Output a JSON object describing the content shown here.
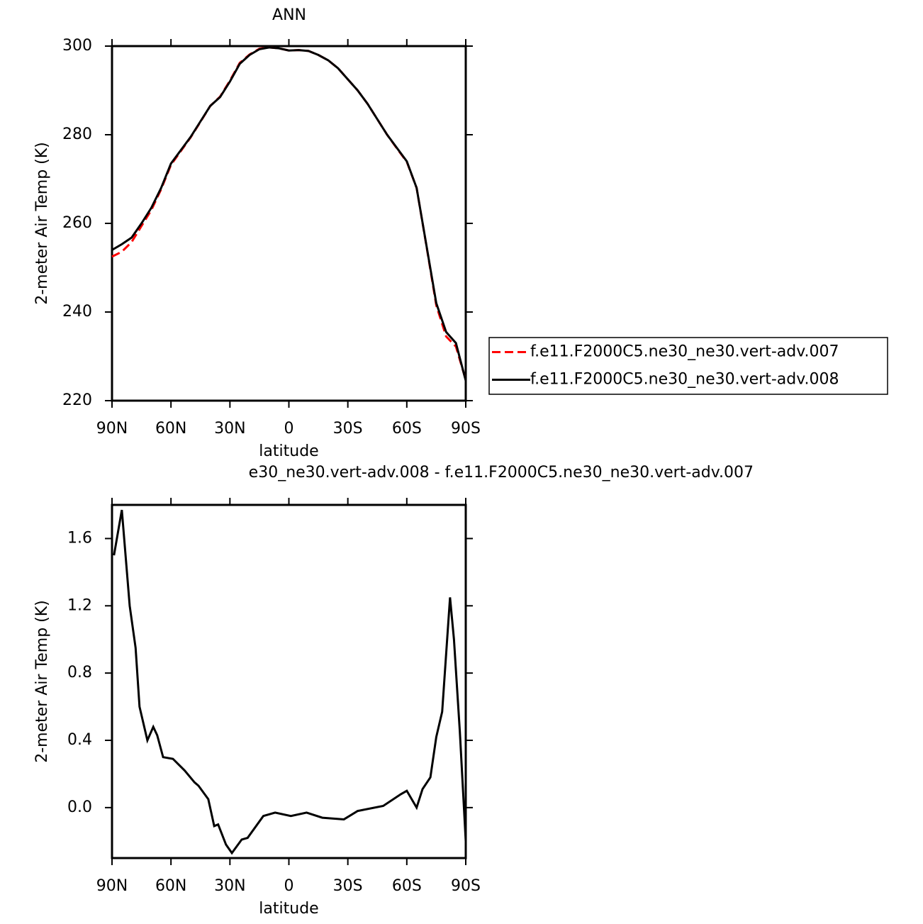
{
  "chart_data": [
    {
      "type": "line",
      "title": "ANN",
      "xlabel": "latitude",
      "ylabel": "2-meter Air Temp (K)",
      "x": [
        90,
        85,
        80,
        75,
        70,
        65,
        60,
        55,
        50,
        45,
        40,
        35,
        30,
        25,
        20,
        15,
        10,
        5,
        0,
        -5,
        -10,
        -15,
        -20,
        -25,
        -30,
        -35,
        -40,
        -45,
        -50,
        -55,
        -60,
        -65,
        -70,
        -75,
        -80,
        -85,
        -90
      ],
      "series": [
        {
          "name": "f.e11.F2000C5.ne30_ne30.vert-adv.007",
          "color": "#ff0000",
          "line_style": "dashed",
          "values": [
            252.5,
            253.6,
            255.8,
            259.4,
            263,
            267.7,
            273.2,
            276.3,
            279.4,
            282.9,
            286.5,
            288.6,
            292.2,
            296.2,
            298.1,
            299.4,
            299.7,
            299.5,
            299,
            299.1,
            298.9,
            298,
            296.8,
            295,
            292.5,
            290,
            287,
            283.5,
            280,
            276.9,
            273.9,
            268,
            254.9,
            241.5,
            234.5,
            232.2,
            224.7
          ]
        },
        {
          "name": "f.e11.F2000C5.ne30_ne30.vert-adv.008",
          "color": "#000000",
          "line_style": "solid",
          "values": [
            254,
            255.3,
            256.8,
            260,
            263.5,
            268,
            273.5,
            276.5,
            279.5,
            283,
            286.5,
            288.5,
            292,
            296,
            298,
            299.3,
            299.7,
            299.5,
            299,
            299.1,
            298.9,
            298,
            296.8,
            295,
            292.5,
            290,
            287,
            283.5,
            280,
            277,
            274,
            268,
            255,
            242,
            235.5,
            233,
            224.5
          ]
        }
      ],
      "xlim": [
        90,
        -90
      ],
      "xticks": [
        {
          "value": 90,
          "label": "90N"
        },
        {
          "value": 60,
          "label": "60N"
        },
        {
          "value": 30,
          "label": "30N"
        },
        0,
        {
          "value": -30,
          "label": "30S"
        },
        {
          "value": -60,
          "label": "60S"
        },
        {
          "value": -90,
          "label": "90S"
        }
      ],
      "ylim": [
        220,
        300
      ],
      "yticks": [
        220,
        240,
        260,
        280,
        300
      ],
      "legend": "right"
    },
    {
      "type": "line",
      "title": "e30_ne30.vert-adv.008 - f.e11.F2000C5.ne30_ne30.vert-adv.007",
      "xlabel": "latitude",
      "ylabel": "2-meter Air Temp (K)",
      "x": [
        89,
        85,
        81,
        78,
        76,
        72,
        69,
        67,
        64,
        59,
        53,
        48,
        46,
        41,
        38,
        36,
        32,
        29,
        24,
        21,
        13,
        7,
        -1,
        -9,
        -17,
        -28,
        -35,
        -48,
        -57,
        -60,
        -65,
        -68,
        -72,
        -75,
        -78,
        -82,
        -84,
        -87,
        -90
      ],
      "series": [
        {
          "color": "#000000",
          "line_style": "solid",
          "values": [
            1.5,
            1.77,
            1.2,
            0.95,
            0.6,
            0.4,
            0.48,
            0.43,
            0.3,
            0.29,
            0.22,
            0.15,
            0.13,
            0.05,
            -0.11,
            -0.1,
            -0.22,
            -0.27,
            -0.19,
            -0.18,
            -0.05,
            -0.03,
            -0.05,
            -0.03,
            -0.06,
            -0.07,
            -0.02,
            0.01,
            0.08,
            0.1,
            0.0,
            0.11,
            0.18,
            0.42,
            0.57,
            1.25,
            1.0,
            0.45,
            -0.2
          ]
        }
      ],
      "xlim": [
        90,
        -90
      ],
      "xticks": [
        {
          "value": 90,
          "label": "90N"
        },
        {
          "value": 60,
          "label": "60N"
        },
        {
          "value": 30,
          "label": "30N"
        },
        0,
        {
          "value": -30,
          "label": "30S"
        },
        {
          "value": -60,
          "label": "60S"
        },
        {
          "value": -90,
          "label": "90S"
        }
      ],
      "ylim": [
        -0.3,
        1.8
      ],
      "yticks": [
        {
          "value": 0,
          "label": "0.0"
        },
        0.4,
        0.8,
        1.2,
        1.6
      ]
    }
  ]
}
